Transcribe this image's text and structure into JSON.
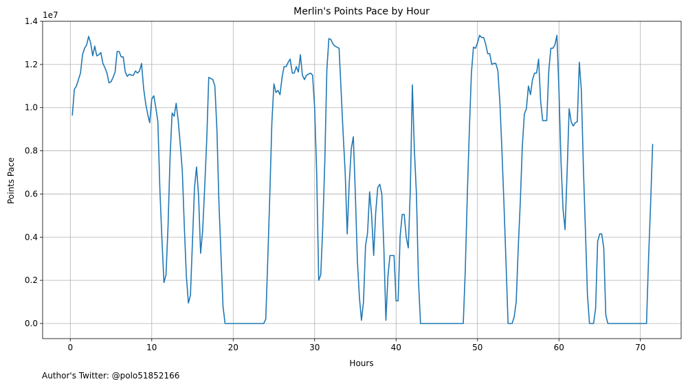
{
  "chart_data": {
    "type": "line",
    "title": "Merlin's Points Pace by Hour",
    "xlabel": "Hours",
    "ylabel": "Points Pace",
    "y_scale_label": "1e7",
    "footer": "Author's Twitter: @polo51852166",
    "xlim": [
      -3.4,
      75.0
    ],
    "ylim": [
      -0.07,
      1.4
    ],
    "y_multiplier": 10000000,
    "x_ticks": [
      0,
      10,
      20,
      30,
      40,
      50,
      60,
      70
    ],
    "x_tick_labels": [
      "0",
      "10",
      "20",
      "30",
      "40",
      "50",
      "60",
      "70"
    ],
    "y_ticks": [
      0.0,
      0.2,
      0.4,
      0.6,
      0.8,
      1.0,
      1.2,
      1.4
    ],
    "y_tick_labels": [
      "0.0",
      "0.2",
      "0.4",
      "0.6",
      "0.8",
      "1.0",
      "1.2",
      "1.4"
    ],
    "grid": true,
    "series": [
      {
        "name": "Points Pace",
        "color": "#1f77b4",
        "x": [
          0.25,
          0.5,
          0.75,
          1.0,
          1.25,
          1.5,
          1.75,
          2.0,
          2.25,
          2.5,
          2.75,
          3.0,
          3.25,
          3.5,
          3.75,
          4.0,
          4.25,
          4.5,
          4.75,
          5.0,
          5.25,
          5.5,
          5.75,
          6.0,
          6.25,
          6.5,
          6.75,
          7.0,
          7.25,
          7.5,
          7.75,
          8.0,
          8.25,
          8.5,
          8.75,
          9.0,
          9.25,
          9.5,
          9.75,
          10.0,
          10.25,
          10.5,
          10.75,
          11.0,
          11.25,
          11.5,
          11.75,
          12.0,
          12.25,
          12.5,
          12.75,
          13.0,
          13.25,
          13.5,
          13.75,
          14.0,
          14.25,
          14.5,
          14.75,
          15.0,
          15.25,
          15.5,
          15.75,
          16.0,
          16.25,
          16.5,
          16.75,
          17.0,
          17.25,
          17.5,
          17.75,
          18.0,
          18.25,
          18.5,
          18.75,
          19.0,
          19.25,
          19.5,
          19.75,
          20.0,
          20.5,
          21.0,
          21.5,
          22.0,
          22.5,
          23.0,
          23.5,
          23.75,
          24.0,
          24.25,
          24.5,
          24.75,
          25.0,
          25.25,
          25.5,
          25.75,
          26.0,
          26.25,
          26.5,
          26.75,
          27.0,
          27.25,
          27.5,
          27.75,
          28.0,
          28.25,
          28.5,
          28.75,
          29.0,
          29.25,
          29.5,
          29.75,
          30.0,
          30.25,
          30.5,
          30.75,
          31.0,
          31.25,
          31.5,
          31.75,
          32.0,
          32.25,
          32.5,
          32.75,
          33.0,
          33.25,
          33.5,
          33.75,
          34.0,
          34.25,
          34.5,
          34.75,
          35.0,
          35.25,
          35.5,
          35.75,
          36.0,
          36.25,
          36.5,
          36.75,
          37.0,
          37.25,
          37.5,
          37.75,
          38.0,
          38.25,
          38.5,
          38.75,
          39.0,
          39.25,
          39.5,
          39.75,
          40.0,
          40.25,
          40.5,
          40.75,
          41.0,
          41.25,
          41.5,
          41.75,
          42.0,
          42.25,
          42.5,
          42.75,
          43.0,
          43.5,
          44.0,
          44.5,
          45.0,
          45.5,
          46.0,
          46.5,
          47.0,
          47.5,
          48.0,
          48.25,
          48.5,
          48.75,
          49.0,
          49.25,
          49.5,
          49.75,
          50.0,
          50.25,
          50.5,
          50.75,
          51.0,
          51.25,
          51.5,
          51.75,
          52.0,
          52.25,
          52.5,
          52.75,
          53.0,
          53.25,
          53.5,
          53.75,
          54.0,
          54.25,
          54.5,
          54.75,
          55.0,
          55.25,
          55.5,
          55.75,
          56.0,
          56.25,
          56.5,
          56.75,
          57.0,
          57.25,
          57.5,
          57.75,
          58.0,
          58.25,
          58.5,
          58.75,
          59.0,
          59.25,
          59.5,
          59.75,
          60.0,
          60.25,
          60.5,
          60.75,
          61.0,
          61.25,
          61.5,
          61.75,
          62.0,
          62.25,
          62.5,
          62.75,
          63.0,
          63.25,
          63.5,
          63.75,
          64.0,
          64.25,
          64.5,
          64.75,
          65.0,
          65.25,
          65.5,
          65.75,
          66.0,
          66.5,
          67.0,
          67.5,
          68.0,
          68.5,
          69.0,
          69.5,
          70.0,
          70.5,
          70.75,
          71.0,
          71.25,
          71.5
        ],
        "values": [
          0.965,
          1.085,
          1.1,
          1.13,
          1.16,
          1.245,
          1.275,
          1.29,
          1.33,
          1.3,
          1.24,
          1.285,
          1.24,
          1.245,
          1.255,
          1.205,
          1.185,
          1.16,
          1.115,
          1.12,
          1.14,
          1.165,
          1.26,
          1.26,
          1.235,
          1.235,
          1.165,
          1.145,
          1.155,
          1.15,
          1.15,
          1.17,
          1.16,
          1.17,
          1.205,
          1.09,
          1.02,
          0.97,
          0.93,
          1.04,
          1.055,
          1.0,
          0.935,
          0.62,
          0.39,
          0.19,
          0.225,
          0.45,
          0.77,
          0.975,
          0.96,
          1.02,
          0.94,
          0.83,
          0.71,
          0.45,
          0.22,
          0.095,
          0.13,
          0.38,
          0.63,
          0.725,
          0.59,
          0.325,
          0.43,
          0.63,
          0.85,
          1.14,
          1.135,
          1.13,
          1.1,
          0.9,
          0.56,
          0.32,
          0.08,
          0.0,
          0.0,
          0.0,
          0.0,
          0.0,
          0.0,
          0.0,
          0.0,
          0.0,
          0.0,
          0.0,
          0.0,
          0.0,
          0.02,
          0.3,
          0.6,
          0.93,
          1.11,
          1.07,
          1.08,
          1.06,
          1.14,
          1.19,
          1.19,
          1.21,
          1.225,
          1.16,
          1.16,
          1.19,
          1.165,
          1.245,
          1.15,
          1.13,
          1.15,
          1.155,
          1.16,
          1.15,
          1.0,
          0.7,
          0.2,
          0.225,
          0.45,
          0.75,
          1.175,
          1.32,
          1.315,
          1.295,
          1.285,
          1.28,
          1.275,
          1.08,
          0.88,
          0.7,
          0.415,
          0.65,
          0.81,
          0.865,
          0.6,
          0.29,
          0.12,
          0.015,
          0.1,
          0.36,
          0.42,
          0.61,
          0.5,
          0.315,
          0.515,
          0.63,
          0.645,
          0.6,
          0.35,
          0.015,
          0.22,
          0.315,
          0.315,
          0.315,
          0.105,
          0.105,
          0.405,
          0.505,
          0.505,
          0.4,
          0.35,
          0.62,
          1.105,
          0.8,
          0.6,
          0.2,
          0.0,
          0.0,
          0.0,
          0.0,
          0.0,
          0.0,
          0.0,
          0.0,
          0.0,
          0.0,
          0.0,
          0.0,
          0.25,
          0.6,
          0.9,
          1.16,
          1.28,
          1.275,
          1.3,
          1.335,
          1.325,
          1.325,
          1.295,
          1.25,
          1.25,
          1.2,
          1.205,
          1.205,
          1.17,
          1.02,
          0.8,
          0.55,
          0.28,
          0.0,
          0.0,
          0.0,
          0.03,
          0.1,
          0.35,
          0.56,
          0.82,
          0.97,
          0.995,
          1.1,
          1.06,
          1.13,
          1.16,
          1.16,
          1.225,
          1.03,
          0.94,
          0.94,
          0.94,
          1.17,
          1.275,
          1.275,
          1.29,
          1.335,
          1.08,
          0.75,
          0.53,
          0.435,
          0.7,
          0.995,
          0.935,
          0.915,
          0.93,
          0.935,
          1.21,
          1.08,
          0.72,
          0.43,
          0.13,
          0.0,
          0.0,
          0.0,
          0.07,
          0.38,
          0.415,
          0.415,
          0.35,
          0.04,
          0.0,
          0.0,
          0.0,
          0.0,
          0.0,
          0.0,
          0.0,
          0.0,
          0.0,
          0.0,
          0.0,
          0.3,
          0.55,
          0.83
        ]
      }
    ]
  }
}
